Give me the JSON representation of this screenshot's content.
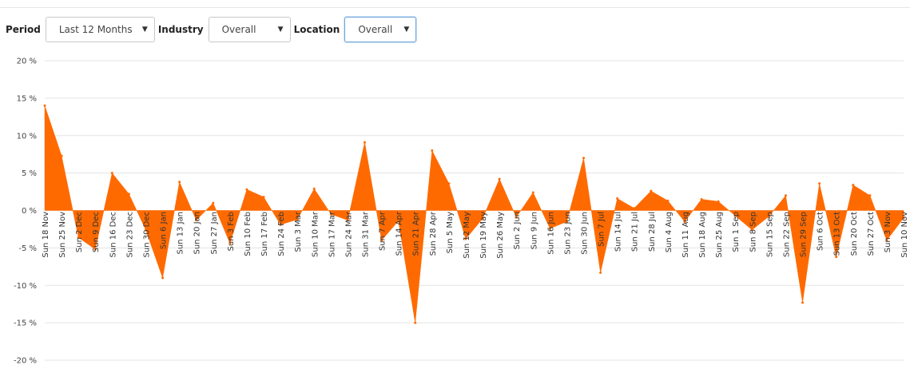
{
  "filters": {
    "period": {
      "label": "Period",
      "value": "Last 12 Months"
    },
    "industry": {
      "label": "Industry",
      "value": "Overall"
    },
    "location": {
      "label": "Location",
      "value": "Overall"
    }
  },
  "colors": {
    "area": "#ff6a00",
    "grid": "#e3e3e3"
  },
  "chart_data": {
    "type": "area",
    "title": "",
    "xlabel": "",
    "ylabel": "",
    "ylim": [
      -20,
      20
    ],
    "yticks": [
      20,
      15,
      10,
      5,
      0,
      -5,
      -10,
      -15,
      -20
    ],
    "ytick_labels": [
      "20 %",
      "15 %",
      "10 %",
      "5 %",
      "0 %",
      "-5 %",
      "-10 %",
      "-15 %",
      "-20 %"
    ],
    "grid": true,
    "x": [
      "Sun 18 Nov",
      "Sun 25 Nov",
      "Sun 2 Dec",
      "Sun 9 Dec",
      "Sun 16 Dec",
      "Sun 23 Dec",
      "Sun 30 Dec",
      "Sun 6 Jan",
      "Sun 13 Jan",
      "Sun 20 Jan",
      "Sun 27 Jan",
      "Sun 3 Feb",
      "Sun 10 Feb",
      "Sun 17 Feb",
      "Sun 24 Feb",
      "Sun 3 Mar",
      "Sun 10 Mar",
      "Sun 17 Mar",
      "Sun 24 Mar",
      "Sun 31 Mar",
      "Sun 7 Apr",
      "Sun 14 Apr",
      "Sun 21 Apr",
      "Sun 28 Apr",
      "Sun 5 May",
      "Sun 12 May",
      "Sun 19 May",
      "Sun 26 May",
      "Sun 2 Jun",
      "Sun 9 Jun",
      "Sun 16 Jun",
      "Sun 23 Jun",
      "Sun 30 Jun",
      "Sun 7 Jul",
      "Sun 14 Jul",
      "Sun 21 Jul",
      "Sun 28 Jul",
      "Sun 4 Aug",
      "Sun 11 Aug",
      "Sun 18 Aug",
      "Sun 25 Aug",
      "Sun 1 Sep",
      "Sun 8 Sep",
      "Sun 15 Sep",
      "Sun 22 Sep",
      "Sun 29 Sep",
      "Sun 6 Oct",
      "Sun 13 Oct",
      "Sun 20 Oct",
      "Sun 27 Oct",
      "Sun 3 Nov",
      "Sun 10 Nov"
    ],
    "series": [
      {
        "values": [
          14,
          7.3,
          -3.6,
          -5.2,
          5,
          2.2,
          -2.6,
          -9,
          3.8,
          -1.3,
          1,
          -4.4,
          2.8,
          1.8,
          -1.9,
          -1.2,
          2.9,
          -0.5,
          -1.3,
          9.1,
          -4,
          -1.4,
          -15,
          8,
          3.6,
          -3.8,
          -1.1,
          4.2,
          -0.9,
          2.4,
          -2.4,
          -1.5,
          7,
          -8.3,
          1.6,
          0.3,
          2.6,
          1.3,
          -1.5,
          1.5,
          1.2,
          -0.7,
          -2.6,
          -0.8,
          2,
          -12.3,
          3.6,
          -6.2,
          3.4,
          2,
          -4,
          -1
        ]
      }
    ]
  }
}
